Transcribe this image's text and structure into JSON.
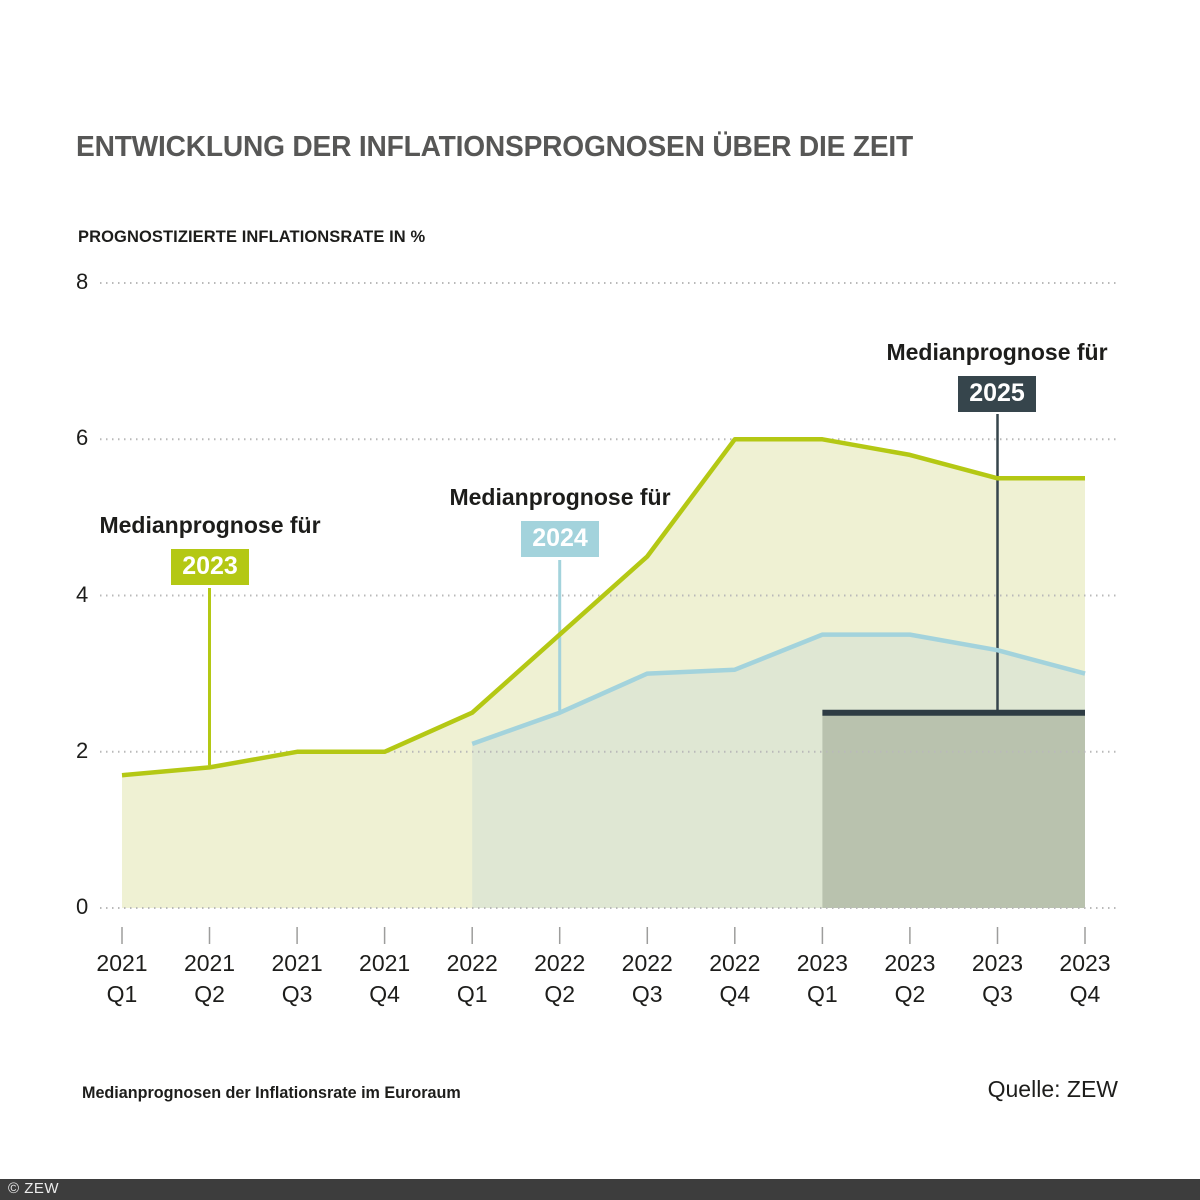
{
  "title": "ENTWICKLUNG DER INFLATIONSPROGNOSEN ÜBER DIE ZEIT",
  "subtitle": "PROGNOSTIZIERTE INFLATIONSRATE IN %",
  "footer": {
    "caption": "Medianprognosen der Inflationsrate im Euroraum",
    "source": "Quelle: ZEW"
  },
  "copyright_bar": {
    "text": "© ZEW",
    "background": "#3d3d3d"
  },
  "colors": {
    "lime": "#b4c814",
    "lime_fill": "#eff1d3",
    "light_blue": "#a3d3dc",
    "blue_overlap_fill": "#dfe7d3",
    "dark_slate": "#36454c",
    "dark_line": "#2e3c44",
    "triple_overlap_fill": "#b9c2ae",
    "title_gray": "#575756",
    "text_black": "#1d1d1b",
    "grid_gray": "#b9b9b9",
    "tick_gray": "#9d9d9c"
  },
  "chart_data": {
    "type": "area",
    "title": "ENTWICKLUNG DER INFLATIONSPROGNOSEN ÜBER DIE ZEIT",
    "ylabel": "PROGNOSTIZIERTE INFLATIONSRATE IN %",
    "ylim": [
      0,
      8
    ],
    "y_ticks": [
      0,
      2,
      4,
      6,
      8
    ],
    "grid": "horizontal-dotted",
    "legend_position": "inline-annotations",
    "categories": [
      "2021 Q1",
      "2021 Q2",
      "2021 Q3",
      "2021 Q4",
      "2022 Q1",
      "2022 Q2",
      "2022 Q3",
      "2022 Q4",
      "2023 Q1",
      "2023 Q2",
      "2023 Q3",
      "2023 Q4"
    ],
    "series": [
      {
        "name": "Medianprognose für 2023",
        "year": "2023",
        "start_index": 0,
        "values": [
          1.7,
          1.8,
          2.0,
          2.0,
          2.5,
          3.5,
          4.5,
          6.0,
          6.0,
          5.8,
          5.5,
          5.5
        ]
      },
      {
        "name": "Medianprognose für 2024",
        "year": "2024",
        "start_index": 4,
        "values": [
          2.1,
          2.5,
          3.0,
          3.05,
          3.5,
          3.5,
          3.3,
          3.0
        ]
      },
      {
        "name": "Medianprognose für 2025",
        "year": "2025",
        "start_index": 8,
        "values": [
          2.5,
          2.5,
          2.5,
          2.5
        ]
      }
    ],
    "annotations": [
      {
        "label": "Medianprognose für",
        "year": "2023",
        "anchor_category": "2021 Q2",
        "anchor_index": 1
      },
      {
        "label": "Medianprognose für",
        "year": "2024",
        "anchor_category": "2022 Q2",
        "anchor_index": 5
      },
      {
        "label": "Medianprognose für",
        "year": "2025",
        "anchor_category": "2023 Q3",
        "anchor_index": 10
      }
    ]
  }
}
